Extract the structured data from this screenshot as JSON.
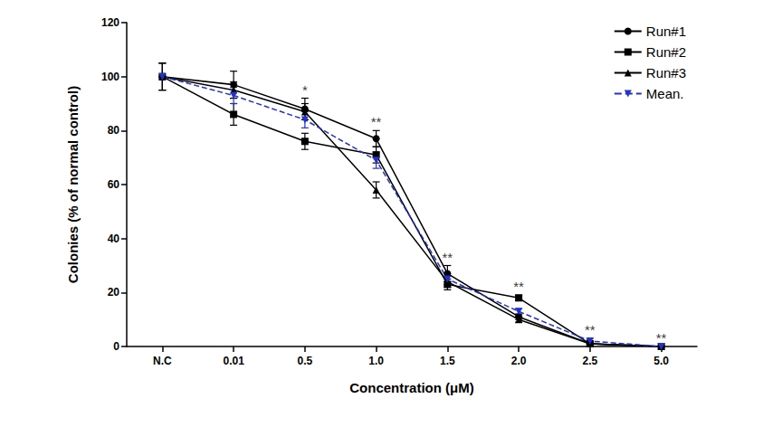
{
  "chart_data": {
    "type": "line",
    "x_label": "Concentration (μM)",
    "y_label": "Colonies (% of normal control)",
    "categories": [
      "N.C",
      "0.01",
      "0.5",
      "1.0",
      "1.5",
      "2.0",
      "2.5",
      "5.0"
    ],
    "ylim": [
      0,
      120
    ],
    "yticks": [
      0,
      20,
      40,
      60,
      80,
      100,
      120
    ],
    "grid": false,
    "legend": "upper right",
    "series": [
      {
        "name": "Run#1",
        "color": "#000000",
        "marker": "circle",
        "line_style": "solid",
        "values": [
          100,
          97,
          88,
          77,
          27,
          11,
          1,
          0
        ],
        "errors": [
          5,
          5,
          4,
          3,
          3,
          1,
          1,
          0
        ]
      },
      {
        "name": "Run#2",
        "color": "#000000",
        "marker": "square",
        "line_style": "solid",
        "values": [
          100,
          86,
          76,
          71,
          23,
          18,
          1,
          0
        ],
        "errors": [
          5,
          4,
          3,
          3,
          2,
          1,
          0,
          0
        ]
      },
      {
        "name": "Run#3",
        "color": "#000000",
        "marker": "triangle",
        "line_style": "solid",
        "values": [
          100,
          95,
          87,
          58,
          24,
          10,
          1,
          0
        ],
        "errors": [
          5,
          3,
          3,
          3,
          2,
          1,
          0,
          0
        ]
      },
      {
        "name": "Mean.",
        "color": "#2233cc",
        "marker": "triangle-down",
        "line_style": "dashed",
        "values": [
          100,
          93,
          84,
          69,
          25,
          13,
          2,
          0
        ],
        "errors": [
          0,
          3,
          3,
          3,
          2,
          1,
          1,
          0
        ]
      }
    ],
    "annotations": [
      {
        "category": "0.5",
        "text": "*"
      },
      {
        "category": "1.0",
        "text": "**"
      },
      {
        "category": "1.5",
        "text": "**"
      },
      {
        "category": "2.0",
        "text": "**"
      },
      {
        "category": "2.5",
        "text": "**"
      },
      {
        "category": "5.0",
        "text": "**"
      }
    ]
  }
}
